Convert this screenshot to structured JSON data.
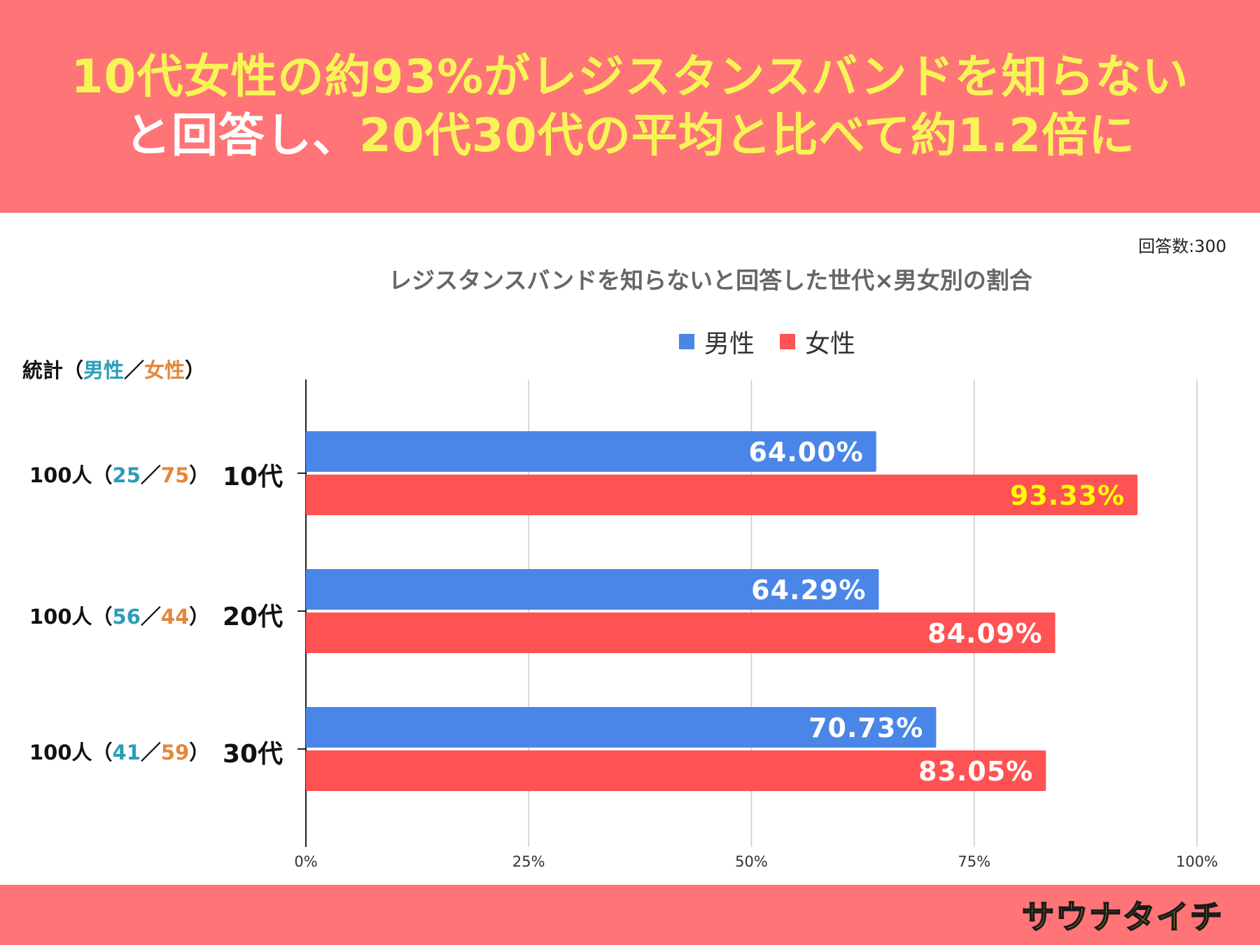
{
  "header": {
    "line1": "10代女性の約93%がレジスタンスバンドを知らない",
    "line2_white": "と回答し、",
    "line2_yellow": "20代30代の平均と比べて約1.2倍に"
  },
  "sample_note": "回答数:300",
  "stats": {
    "title_prefix": "統計（",
    "male_label": "男性",
    "separator": "／",
    "female_label": "女性",
    "title_suffix": "）",
    "rows": [
      {
        "total": "100人（",
        "male": "25",
        "sep": "／",
        "female": "75",
        "end": "）"
      },
      {
        "total": "100人（",
        "male": "56",
        "sep": "／",
        "female": "44",
        "end": "）"
      },
      {
        "total": "100人（",
        "male": "41",
        "sep": "／",
        "female": "59",
        "end": "）"
      }
    ]
  },
  "logo_text": "サウナタイチ",
  "colors": {
    "header_bg": "#ff7477",
    "title_yellow": "#f7f556",
    "male_bar": "#4a86e8",
    "female_bar": "#ff5252",
    "highlight_label": "#ffff00",
    "grid": "#cccccc"
  },
  "chart_data": {
    "type": "bar",
    "orientation": "horizontal",
    "title": "レジスタンスバンドを知らないと回答した世代×男女別の割合",
    "categories": [
      "10代",
      "20代",
      "30代"
    ],
    "series": [
      {
        "name": "男性",
        "values": [
          64.0,
          64.29,
          70.73
        ],
        "labels": [
          "64.00%",
          "64.29%",
          "70.73%"
        ]
      },
      {
        "name": "女性",
        "values": [
          93.33,
          84.09,
          83.05
        ],
        "labels": [
          "93.33%",
          "84.09%",
          "83.05%"
        ]
      }
    ],
    "xlim": [
      0,
      100
    ],
    "xticks": [
      "0%",
      "25%",
      "50%",
      "75%",
      "100%"
    ],
    "grid": true,
    "legend_position": "top-center",
    "highlight": {
      "series": 1,
      "index": 0
    }
  }
}
